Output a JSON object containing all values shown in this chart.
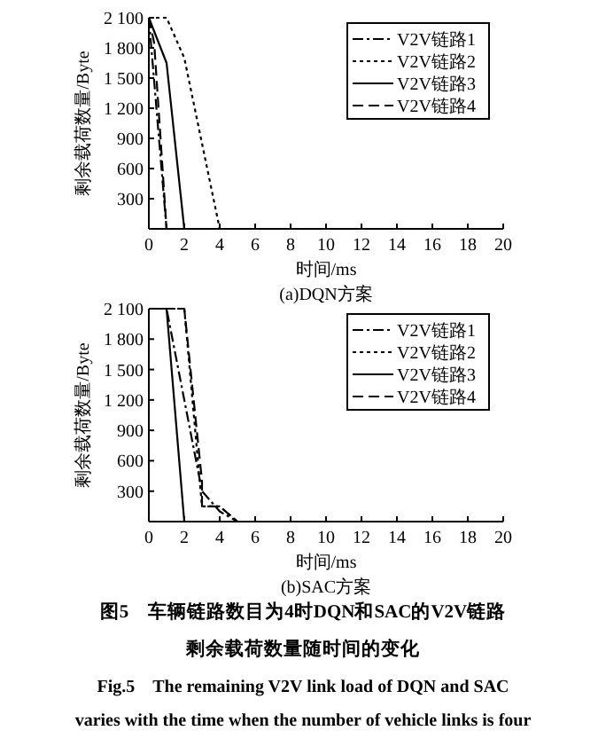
{
  "chart_data": [
    {
      "type": "line",
      "title": "(a)DQN方案",
      "xlabel": "时间/ms",
      "ylabel": "剩余载荷数量/Byte",
      "xlim": [
        0,
        20
      ],
      "ylim": [
        0,
        2100
      ],
      "xticks": [
        0,
        2,
        4,
        6,
        8,
        10,
        12,
        14,
        16,
        18,
        20
      ],
      "yticks": [
        {
          "value": 300,
          "label": "300"
        },
        {
          "value": 600,
          "label": "600"
        },
        {
          "value": 900,
          "label": "900"
        },
        {
          "value": 1200,
          "label": "1 200"
        },
        {
          "value": 1500,
          "label": "1 500"
        },
        {
          "value": 1800,
          "label": "1 800"
        },
        {
          "value": 2100,
          "label": "2 100"
        }
      ],
      "legend": "top right",
      "grid": false,
      "marker": "none",
      "series": [
        {
          "name": "V2V链路1",
          "color": "#000000",
          "line_style": "dashdot",
          "x": [
            0,
            1,
            20
          ],
          "values": [
            2100,
            0,
            0
          ]
        },
        {
          "name": "V2V链路2",
          "color": "#000000",
          "line_style": "dotted",
          "x": [
            0,
            1,
            2,
            4,
            20
          ],
          "values": [
            2100,
            2100,
            1700,
            0,
            0
          ]
        },
        {
          "name": "V2V链路3",
          "color": "#000000",
          "line_style": "solid",
          "x": [
            0,
            1,
            2,
            20
          ],
          "values": [
            2100,
            1650,
            0,
            0
          ]
        },
        {
          "name": "V2V链路4",
          "color": "#000000",
          "line_style": "dashed",
          "x": [
            0,
            0.3,
            1,
            20
          ],
          "values": [
            2100,
            1850,
            0,
            0
          ]
        }
      ]
    },
    {
      "type": "line",
      "title": "(b)SAC方案",
      "xlabel": "时间/ms",
      "ylabel": "剩余载荷数量/Byte",
      "xlim": [
        0,
        20
      ],
      "ylim": [
        0,
        2100
      ],
      "xticks": [
        0,
        2,
        4,
        6,
        8,
        10,
        12,
        14,
        16,
        18,
        20
      ],
      "yticks": [
        {
          "value": 300,
          "label": "300"
        },
        {
          "value": 600,
          "label": "600"
        },
        {
          "value": 900,
          "label": "900"
        },
        {
          "value": 1200,
          "label": "1 200"
        },
        {
          "value": 1500,
          "label": "1 500"
        },
        {
          "value": 1800,
          "label": "1 800"
        },
        {
          "value": 2100,
          "label": "2 100"
        }
      ],
      "legend": "top right",
      "grid": false,
      "marker": "none",
      "series": [
        {
          "name": "V2V链路1",
          "color": "#000000",
          "line_style": "dashdot",
          "x": [
            0,
            1,
            3,
            4,
            5,
            20
          ],
          "values": [
            2100,
            2100,
            300,
            100,
            0,
            0
          ]
        },
        {
          "name": "V2V链路2",
          "color": "#000000",
          "line_style": "dotted",
          "x": [
            0,
            2,
            3,
            4,
            5,
            20
          ],
          "values": [
            2100,
            2100,
            150,
            150,
            0,
            0
          ]
        },
        {
          "name": "V2V链路3",
          "color": "#000000",
          "line_style": "solid",
          "x": [
            0,
            1,
            2,
            20
          ],
          "values": [
            2100,
            2100,
            0,
            0
          ]
        },
        {
          "name": "V2V链路4",
          "color": "#000000",
          "line_style": "dashed",
          "x": [
            0,
            2,
            3,
            3,
            4,
            5,
            20
          ],
          "values": [
            2100,
            2100,
            400,
            150,
            150,
            0,
            0
          ]
        }
      ],
      "annotations": [
        "图5　车辆链路数目为4时DQN和SAC的V2V链路",
        "剩余载荷数量随时间的变化",
        "Fig.5　The remaining V2V link load of DQN and SAC",
        "varies with the time when the number of vehicle links is four"
      ]
    }
  ]
}
